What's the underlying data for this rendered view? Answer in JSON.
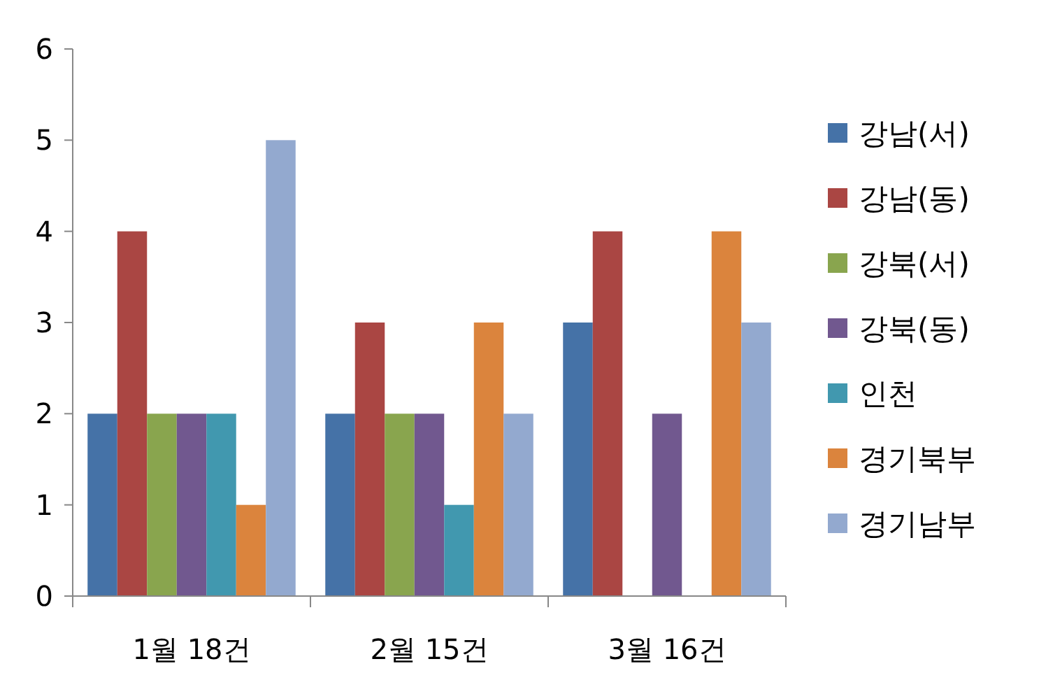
{
  "chart_data": {
    "type": "bar",
    "categories": [
      "1월 18건",
      "2월 15건",
      "3월 16건"
    ],
    "series": [
      {
        "name": "강남(서)",
        "color": "#4572a7",
        "values": [
          2,
          2,
          3
        ]
      },
      {
        "name": "강남(동)",
        "color": "#aa4643",
        "values": [
          4,
          3,
          4
        ]
      },
      {
        "name": "강북(서)",
        "color": "#89a54e",
        "values": [
          2,
          2,
          0
        ]
      },
      {
        "name": "강북(동)",
        "color": "#71588f",
        "values": [
          2,
          2,
          2
        ]
      },
      {
        "name": "인천",
        "color": "#4198af",
        "values": [
          2,
          1,
          0
        ]
      },
      {
        "name": "경기북부",
        "color": "#db843d",
        "values": [
          1,
          3,
          4
        ]
      },
      {
        "name": "경기남부",
        "color": "#93a9cf",
        "values": [
          5,
          2,
          3
        ]
      }
    ],
    "ylim": [
      0,
      6
    ],
    "yticks": [
      0,
      1,
      2,
      3,
      4,
      5,
      6
    ],
    "legend": "right",
    "grid": false
  }
}
